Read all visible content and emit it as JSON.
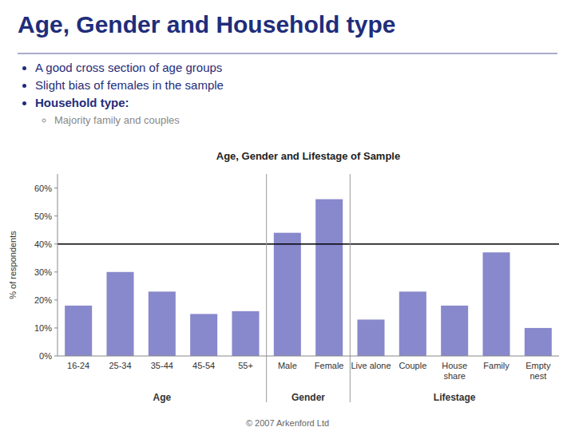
{
  "title": "Age, Gender and Household type",
  "bullet_points": [
    "A good cross section of age groups",
    "Slight bias of females in the sample",
    "Household type:"
  ],
  "sub_bullet": "Majority family and couples",
  "footer": "© 2007 Arkenford Ltd",
  "chart_data": {
    "type": "bar",
    "title": "Age, Gender and Lifestage of Sample",
    "categories": [
      "16-24",
      "25-34",
      "35-44",
      "45-54",
      "55+",
      "Male",
      "Female",
      "Live alone",
      "Couple",
      "House\nshare",
      "Family",
      "Empty\nnest"
    ],
    "values": [
      18,
      30,
      23,
      15,
      16,
      44,
      56,
      13,
      23,
      18,
      37,
      10
    ],
    "color": "#8888CC",
    "ylabel": "% of respondents",
    "ylim": [
      0,
      65
    ],
    "yticks": [
      {
        "value": 0,
        "label": "0%"
      },
      {
        "value": 10,
        "label": "10%"
      },
      {
        "value": 20,
        "label": "20%"
      },
      {
        "value": 30,
        "label": "30%"
      },
      {
        "value": 40,
        "label": "40%"
      },
      {
        "value": 50,
        "label": "50%"
      },
      {
        "value": 60,
        "label": "60%"
      }
    ],
    "grid": false,
    "reference_line": 40,
    "groups": [
      {
        "name": "Age",
        "count": 5
      },
      {
        "name": "Gender",
        "count": 2
      },
      {
        "name": "Lifestage",
        "count": 5
      }
    ]
  }
}
